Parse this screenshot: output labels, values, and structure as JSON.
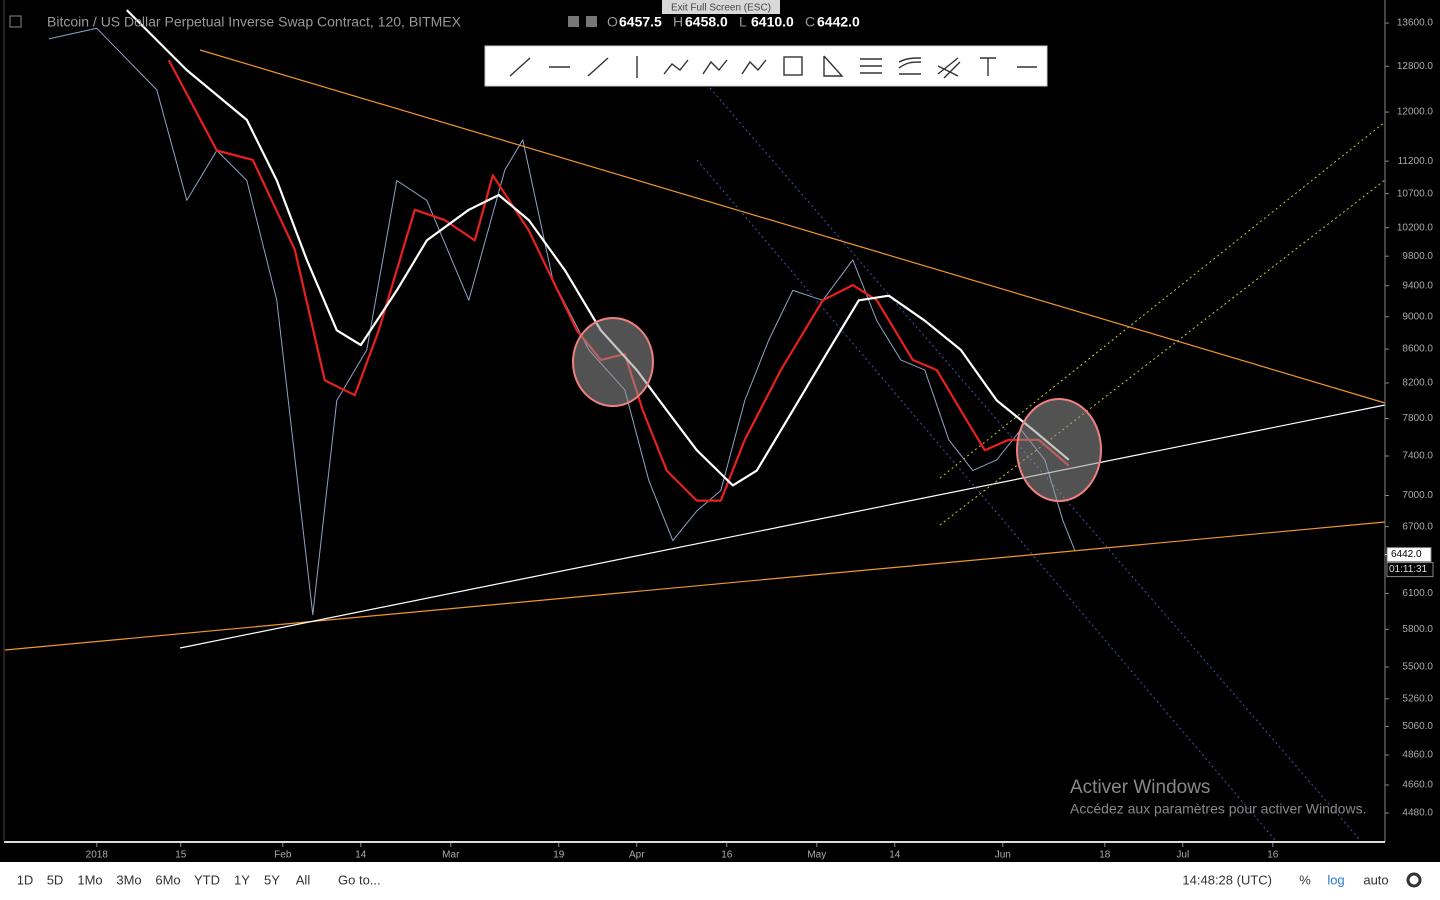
{
  "header": {
    "title": "Bitcoin / US Dollar Perpetual Inverse Swap Contract, 120, BITMEX",
    "ohlc": [
      {
        "key": "O",
        "value": "6457.5"
      },
      {
        "key": "H",
        "value": "6458.0"
      },
      {
        "key": "L",
        "value": "6410.0"
      },
      {
        "key": "C",
        "value": "6442.0"
      }
    ],
    "exit": "Exit Full Screen (ESC)"
  },
  "chart_data": {
    "type": "line",
    "log": true,
    "xlim": [
      -15.3,
      214.7
    ],
    "ylim": [
      4313,
      13950
    ],
    "xticks": [
      {
        "value": 0,
        "label": "2018"
      },
      {
        "value": 14,
        "label": "15"
      },
      {
        "value": 31,
        "label": "Feb"
      },
      {
        "value": 44,
        "label": "14"
      },
      {
        "value": 59,
        "label": "Mar"
      },
      {
        "value": 77,
        "label": "19"
      },
      {
        "value": 90,
        "label": "Apr"
      },
      {
        "value": 105,
        "label": "16"
      },
      {
        "value": 120,
        "label": "May"
      },
      {
        "value": 133,
        "label": "14"
      },
      {
        "value": 151,
        "label": "Jun"
      },
      {
        "value": 168,
        "label": "18"
      },
      {
        "value": 181,
        "label": "Jul"
      },
      {
        "value": 196,
        "label": "16"
      }
    ],
    "yticks": [
      {
        "value": 13600,
        "label": "13600.0"
      },
      {
        "value": 12800,
        "label": "12800.0"
      },
      {
        "value": 12000,
        "label": "12000.0"
      },
      {
        "value": 11200,
        "label": "11200.0"
      },
      {
        "value": 10700,
        "label": "10700.0"
      },
      {
        "value": 10200,
        "label": "10200.0"
      },
      {
        "value": 9800,
        "label": "9800.0"
      },
      {
        "value": 9400,
        "label": "9400.0"
      },
      {
        "value": 9000,
        "label": "9000.0"
      },
      {
        "value": 8600,
        "label": "8600.0"
      },
      {
        "value": 8200,
        "label": "8200.0"
      },
      {
        "value": 7800,
        "label": "7800.0"
      },
      {
        "value": 7400,
        "label": "7400.0"
      },
      {
        "value": 7000,
        "label": "7000.0"
      },
      {
        "value": 6700,
        "label": "6700.0"
      },
      {
        "value": 6100,
        "label": "6100.0"
      },
      {
        "value": 5800,
        "label": "5800.0"
      },
      {
        "value": 5500,
        "label": "5500.0"
      },
      {
        "value": 5260,
        "label": "5260.0"
      },
      {
        "value": 5060,
        "label": "5060.0"
      },
      {
        "value": 4860,
        "label": "4860.0"
      },
      {
        "value": 4660,
        "label": "4660.0"
      },
      {
        "value": 4480,
        "label": "4480.0"
      }
    ],
    "series": [
      {
        "color": "#8fa3c8",
        "width": 1,
        "x": [
          -8,
          0,
          10,
          15,
          20,
          25,
          30,
          36,
          40,
          45,
          50,
          55,
          62,
          68,
          71,
          76,
          82,
          88,
          92,
          96,
          100,
          104,
          108,
          112,
          116,
          121,
          126,
          130,
          134,
          138,
          142,
          146,
          150,
          154,
          158,
          161,
          163
        ],
        "values": [
          13300,
          13500,
          12380,
          10600,
          11370,
          10900,
          9210,
          5920,
          8000,
          8590,
          10900,
          10600,
          9210,
          11060,
          11540,
          9480,
          8590,
          8120,
          7150,
          6570,
          6850,
          7050,
          8000,
          8710,
          9340,
          9210,
          9750,
          8950,
          8470,
          8350,
          7570,
          7250,
          7360,
          7680,
          7360,
          6760,
          6480
        ]
      },
      {
        "color": "#e8201e",
        "width": 2.2,
        "x": [
          12,
          20,
          26,
          33,
          38,
          43,
          47,
          53,
          58,
          63,
          66,
          72,
          80,
          84,
          88,
          91,
          95,
          100,
          104,
          108,
          114,
          121,
          126,
          130,
          136,
          140,
          145,
          148,
          152,
          157,
          162
        ],
        "values": [
          12910,
          11370,
          11220,
          9890,
          8230,
          8060,
          8830,
          10460,
          10310,
          10020,
          10980,
          10160,
          8830,
          8470,
          8540,
          7890,
          7250,
          6950,
          6950,
          7570,
          8350,
          9210,
          9410,
          9210,
          8470,
          8350,
          7780,
          7460,
          7570,
          7570,
          7300
        ]
      },
      {
        "color": "#ffffff",
        "width": 2.2,
        "x": [
          5,
          15,
          25,
          30,
          35,
          40,
          44,
          50,
          55,
          62,
          67,
          72,
          78,
          84,
          90,
          95,
          100,
          106,
          110,
          116,
          122,
          127,
          132,
          138,
          144,
          150,
          156,
          162
        ],
        "values": [
          13850,
          12730,
          11870,
          10900,
          9750,
          8830,
          8650,
          9340,
          10020,
          10460,
          10680,
          10310,
          9610,
          8830,
          8350,
          7890,
          7460,
          7100,
          7250,
          7890,
          8590,
          9210,
          9270,
          8950,
          8590,
          8000,
          7680,
          7360
        ]
      }
    ],
    "last_price": {
      "value": 6442,
      "label": "6442.0"
    },
    "countdown": "01:11:31"
  },
  "footer": {
    "ranges": [
      "1D",
      "5D",
      "1Mo",
      "3Mo",
      "6Mo",
      "YTD",
      "1Y",
      "5Y",
      "All"
    ],
    "goto": "Go to...",
    "time": "14:48:28 (UTC)",
    "options": [
      "%",
      "log",
      "auto"
    ]
  },
  "watermark": {
    "title": "Activer Windows",
    "subtitle": "Accédez aux paramètres pour activer Windows."
  }
}
